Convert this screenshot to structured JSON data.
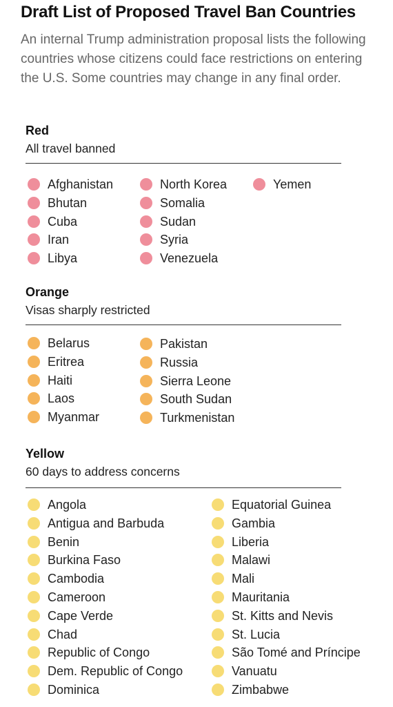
{
  "title": "Draft List of Proposed Travel Ban Countries",
  "intro": "An internal Trump administration proposal lists the following countries whose citizens could face restrictions on entering the U.S. Some countries may change in any final order.",
  "sections": [
    {
      "id": "red",
      "heading": "Red",
      "subheading": "All travel banned",
      "dot_color": "#ef8e9b",
      "columns": [
        [
          "Afghanistan",
          "Bhutan",
          "Cuba",
          "Iran",
          "Libya"
        ],
        [
          "North Korea",
          "Somalia",
          "Sudan",
          "Syria",
          "Venezuela"
        ],
        [
          "Yemen"
        ]
      ]
    },
    {
      "id": "orange",
      "heading": "Orange",
      "subheading": "Visas sharply restricted",
      "dot_color": "#f5b45a",
      "columns": [
        [
          "Belarus",
          "Eritrea",
          "Haiti",
          "Laos",
          "Myanmar"
        ],
        [
          "Pakistan",
          "Russia",
          "Sierra Leone",
          "South Sudan",
          "Turkmenistan"
        ]
      ]
    },
    {
      "id": "yellow",
      "heading": "Yellow",
      "subheading": "60 days to address concerns",
      "dot_color": "#f7dc75",
      "columns": [
        [
          "Angola",
          "Antigua and Barbuda",
          "Benin",
          "Burkina Faso",
          "Cambodia",
          "Cameroon",
          "Cape Verde",
          "Chad",
          "Republic of Congo",
          "Dem. Republic of Congo",
          "Dominica"
        ],
        [
          "Equatorial Guinea",
          "Gambia",
          "Liberia",
          "Malawi",
          "Mali",
          "Mauritania",
          "St. Kitts and Nevis",
          "St. Lucia",
          "São Tomé and Príncipe",
          "Vanuatu",
          "Zimbabwe"
        ]
      ]
    }
  ]
}
